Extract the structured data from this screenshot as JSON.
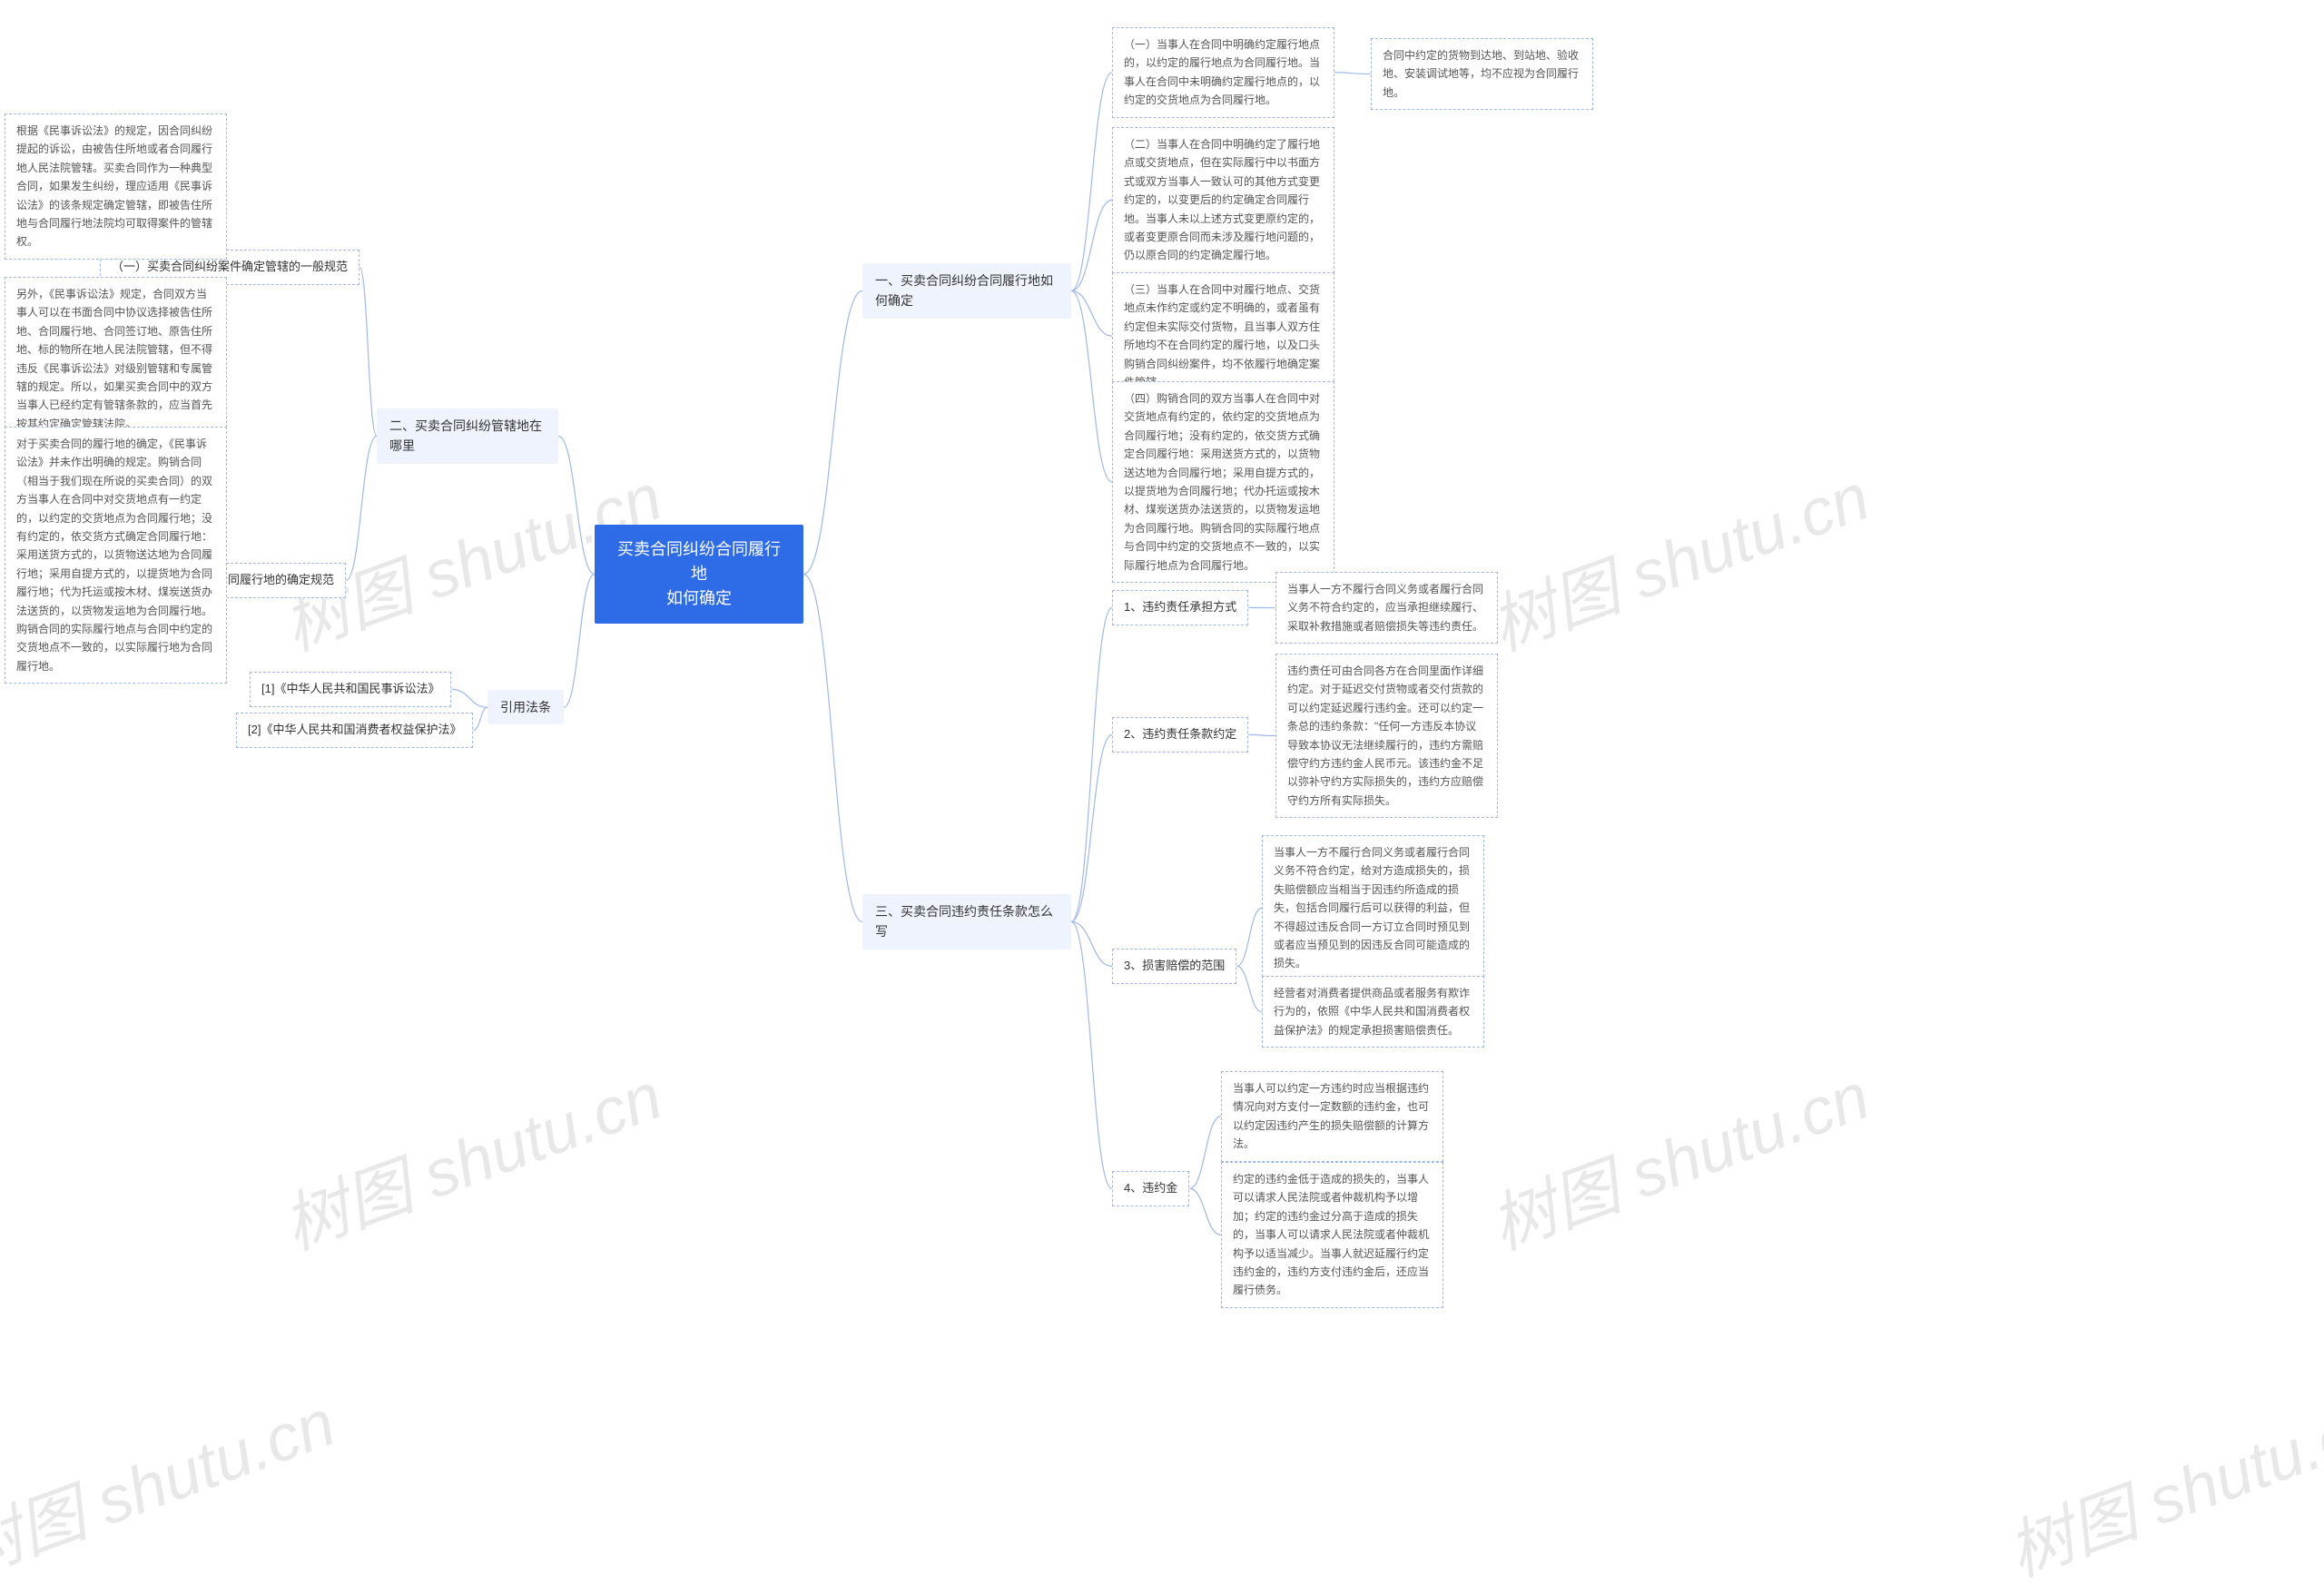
{
  "watermark_text": "树图 shutu.cn",
  "colors": {
    "root_bg": "#2e6be6",
    "root_fg": "#ffffff",
    "branch_bg": "#eef3fd",
    "border": "#9fb8ea",
    "text": "#333333",
    "leaf_text": "#555555",
    "watermark": "#e8e8e8",
    "background": "#ffffff"
  },
  "root": {
    "title_line1": "买卖合同纠纷合同履行地",
    "title_line2": "如何确定"
  },
  "right": {
    "b1": {
      "label": "一、买卖合同纠纷合同履行地如何确定",
      "n1": "（一）当事人在合同中明确约定履行地点的，以约定的履行地点为合同履行地。当事人在合同中未明确约定履行地点的，以约定的交货地点为合同履行地。",
      "n1_side": "合同中约定的货物到达地、到站地、验收地、安装调试地等，均不应视为合同履行地。",
      "n2": "（二）当事人在合同中明确约定了履行地点或交货地点，但在实际履行中以书面方式或双方当事人一致认可的其他方式变更约定的，以变更后的约定确定合同履行地。当事人未以上述方式变更原约定的，或者变更原合同而未涉及履行地问题的，仍以原合同的约定确定履行地。",
      "n3": "（三）当事人在合同中对履行地点、交货地点未作约定或约定不明确的，或者虽有约定但未实际交付货物，且当事人双方住所地均不在合同约定的履行地，以及口头购销合同纠纷案件，均不依履行地确定案件管辖。",
      "n4": "（四）购销合同的双方当事人在合同中对交货地点有约定的，依约定的交货地点为合同履行地；没有约定的，依交货方式确定合同履行地：采用送货方式的，以货物送达地为合同履行地；采用自提方式的，以提货地为合同履行地；代办托运或按木材、煤炭送货办法送货的，以货物发运地为合同履行地。购销合同的实际履行地点与合同中约定的交货地点不一致的，以实际履行地点为合同履行地。"
    },
    "b3": {
      "label": "三、买卖合同违约责任条款怎么写",
      "n1": {
        "label": "1、违约责任承担方式",
        "leaf": "当事人一方不履行合同义务或者履行合同义务不符合约定的，应当承担继续履行、采取补救措施或者赔偿损失等违约责任。"
      },
      "n2": {
        "label": "2、违约责任条款约定",
        "leaf": "违约责任可由合同各方在合同里面作详细约定。对于延迟交付货物或者交付货款的可以约定延迟履行违约金。还可以约定一条总的违约条款：\"任何一方违反本协议导致本协议无法继续履行的，违约方需赔偿守约方违约金人民币元。该违约金不足以弥补守约方实际损失的，违约方应赔偿守约方所有实际损失。"
      },
      "n3": {
        "label": "3、损害赔偿的范围",
        "leaf1": "当事人一方不履行合同义务或者履行合同义务不符合约定，给对方造成损失的，损失赔偿额应当相当于因违约所造成的损失，包括合同履行后可以获得的利益，但不得超过违反合同一方订立合同时预见到或者应当预见到的因违反合同可能造成的损失。",
        "leaf2": "经营者对消费者提供商品或者服务有欺诈行为的，依照《中华人民共和国消费者权益保护法》的规定承担损害赔偿责任。"
      },
      "n4": {
        "label": "4、违约金",
        "leaf1": "当事人可以约定一方违约时应当根据违约情况向对方支付一定数额的违约金，也可以约定因违约产生的损失赔偿额的计算方法。",
        "leaf2": "约定的违约金低于造成的损失的，当事人可以请求人民法院或者仲裁机构予以增加；约定的违约金过分高于造成的损失的，当事人可以请求人民法院或者仲裁机构予以适当减少。当事人就迟延履行约定违约金的，违约方支付违约金后，还应当履行债务。"
      }
    }
  },
  "left": {
    "b2": {
      "label": "二、买卖合同纠纷管辖地在哪里",
      "n1": {
        "label": "（一）买卖合同纠纷案件确定管辖的一般规范",
        "leaf1": "根据《民事诉讼法》的规定，因合同纠纷提起的诉讼，由被告住所地或者合同履行地人民法院管辖。买卖合同作为一种典型合同，如果发生纠纷，理应适用《民事诉讼法》的该条规定确定管辖，即被告住所地与合同履行地法院均可取得案件的管辖权。",
        "leaf2": "另外，《民事诉讼法》规定，合同双方当事人可以在书面合同中协议选择被告住所地、合同履行地、合同签订地、原告住所地、标的物所在地人民法院管辖，但不得违反《民事诉讼法》对级别管辖和专属管辖的规定。所以，如果买卖合同中的双方当事人已经约定有管辖条款的，应当首先按其约定确定管辖法院。"
      },
      "n2": {
        "label": "（二）买卖合同履行地的确定规范",
        "leaf": "对于买卖合同的履行地的确定，《民事诉讼法》并未作出明确的规定。购销合同（相当于我们现在所说的买卖合同）的双方当事人在合同中对交货地点有一约定的，以约定的交货地点为合同履行地；没有约定的，依交货方式确定合同履行地：采用送货方式的，以货物送达地为合同履行地；采用自提方式的，以提货地为合同履行地；代为托运或按木材、煤炭送货办法送货的，以货物发运地为合同履行地。购销合同的实际履行地点与合同中约定的交货地点不一致的，以实际履行地为合同履行地。"
      }
    },
    "ref": {
      "label": "引用法条",
      "n1": "[1]《中华人民共和国民事诉讼法》",
      "n2": "[2]《中华人民共和国消费者权益保护法》"
    }
  }
}
